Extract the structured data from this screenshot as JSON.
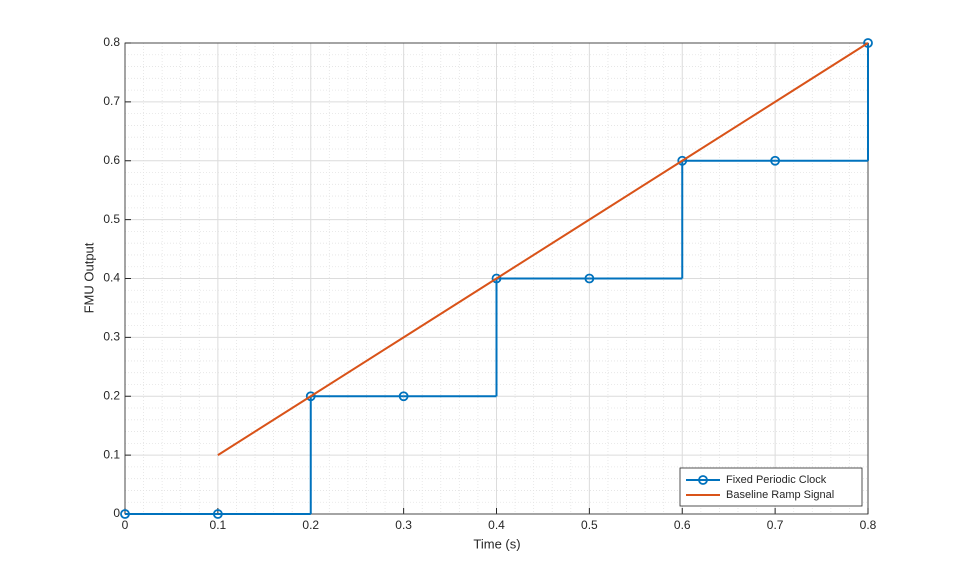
{
  "chart_data": {
    "type": "line",
    "xlabel": "Time (s)",
    "ylabel": "FMU Output",
    "xlim": [
      0,
      0.8
    ],
    "ylim": [
      0,
      0.8
    ],
    "xticks": [
      0,
      0.1,
      0.2,
      0.3,
      0.4,
      0.5,
      0.6,
      0.7,
      0.8
    ],
    "yticks": [
      0,
      0.1,
      0.2,
      0.3,
      0.4,
      0.5,
      0.6,
      0.7,
      0.8
    ],
    "grid": true,
    "minor_grid": true,
    "legend_loc": "lower right",
    "series": [
      {
        "name": "Fixed Periodic Clock",
        "color": "#0072BD",
        "drawstyle": "steps-post",
        "marker": "o",
        "x": [
          0,
          0.1,
          0.2,
          0.3,
          0.4,
          0.5,
          0.6,
          0.7,
          0.8
        ],
        "values": [
          0,
          0,
          0.2,
          0.2,
          0.4,
          0.4,
          0.6,
          0.6,
          0.8
        ]
      },
      {
        "name": "Baseline Ramp Signal",
        "color": "#D95319",
        "drawstyle": "default",
        "x": [
          0.1,
          0.2,
          0.3,
          0.4,
          0.5,
          0.6,
          0.7,
          0.8
        ],
        "values": [
          0.1,
          0.2,
          0.3,
          0.4,
          0.5,
          0.6,
          0.7,
          0.8
        ]
      }
    ]
  }
}
